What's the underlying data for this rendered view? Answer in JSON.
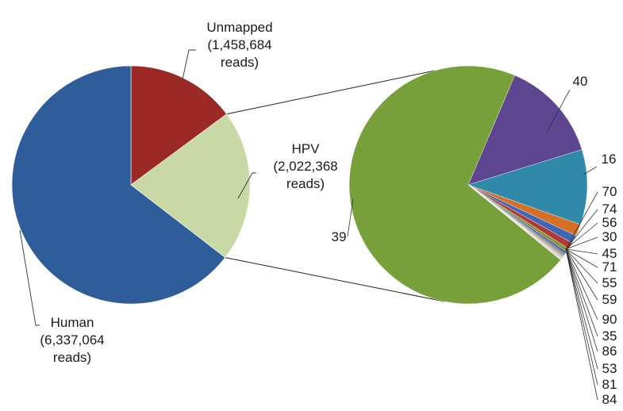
{
  "chart_data": [
    {
      "type": "pie",
      "categories": [
        "Unmapped",
        "HPV",
        "Human"
      ],
      "values": [
        1458684,
        2022368,
        6337064
      ],
      "labels": [
        [
          "Unmapped",
          "(1,458,684",
          "reads)"
        ],
        [
          "HPV",
          "(2,022,368",
          "reads)"
        ],
        [
          "Human",
          "(6,337,064",
          "reads)"
        ]
      ],
      "colors": [
        "#9b2a26",
        "#c9d9a6",
        "#2f5d9a"
      ],
      "exploded_category": "HPV"
    },
    {
      "type": "pie",
      "categories": [
        "39",
        "40",
        "16",
        "70",
        "74",
        "56",
        "30",
        "45",
        "71",
        "55",
        "59",
        "90",
        "35",
        "86",
        "53",
        "81",
        "84"
      ],
      "values": [
        70.5,
        13.8,
        10.2,
        1.6,
        1.1,
        0.9,
        0.5,
        0.3,
        0.25,
        0.2,
        0.15,
        0.12,
        0.1,
        0.08,
        0.06,
        0.05,
        0.04
      ],
      "colors": [
        "#77a03a",
        "#5d4590",
        "#2e8aa8",
        "#d66f23",
        "#3d68b5",
        "#b23a36",
        "#7b9a3f",
        "#674c92",
        "#3a93ad",
        "#d9812f",
        "#92aed3",
        "#d69a97",
        "#b9cf8f",
        "#a292c0",
        "#8ccbdc",
        "#f2b27e",
        "#7c7c7c"
      ]
    }
  ]
}
